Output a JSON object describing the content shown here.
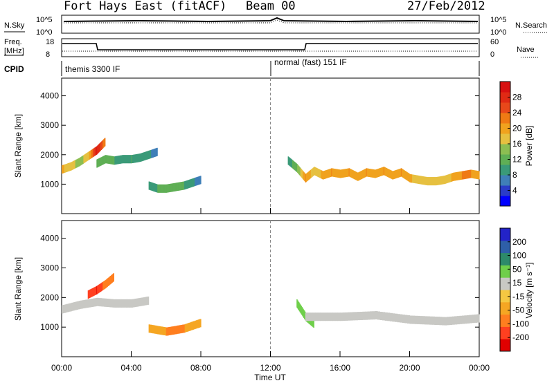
{
  "header": {
    "station": "Fort Hays East (fitACF)",
    "beam": "Beam 00",
    "date": "27/Feb/2012"
  },
  "strip_labels": {
    "nsky": "N.Sky",
    "nsky_hi": "10^5",
    "nsky_lo": "10^0",
    "nsearch": "N.Search",
    "nsearch_hi": "10^5",
    "nsearch_lo": "10^0",
    "freq_a": "Freq.",
    "freq_b": "[MHz]",
    "freq_hi": "18",
    "freq_lo": "8",
    "nave": "Nave",
    "nave_hi": "60",
    "nave_lo": "0",
    "cpid": "CPID",
    "cpid_1": "themis 3300 IF",
    "cpid_2": "normal (fast) 151 IF"
  },
  "power_panel": {
    "ylabel": "Slant Range [km]",
    "cbar_label": "Power [dB]",
    "cbar_ticks": [
      "28",
      "24",
      "20",
      "16",
      "12",
      "8",
      "4"
    ],
    "cbar_colors": [
      "#0000ff",
      "#2a3cc8",
      "#3f7fb8",
      "#3a9a78",
      "#5faf55",
      "#8cbe52",
      "#e6c040",
      "#f0a21e",
      "#ef7a14",
      "#e8481a",
      "#e02a14",
      "#d81010"
    ]
  },
  "velocity_panel": {
    "ylabel": "Slant Range [km]",
    "cbar_label": "Velocity [m s⁻¹]",
    "cbar_ticks": [
      "200",
      "100",
      "50",
      "15",
      "-15",
      "-50",
      "-100",
      "-200"
    ],
    "cbar_colors": [
      "#e00000",
      "#ff4020",
      "#ff7e1f",
      "#f5a623",
      "#f5c842",
      "#c8c8c4",
      "#6fcf4a",
      "#2d8a6a",
      "#2e5fa8",
      "#2323c8"
    ]
  },
  "xaxis": {
    "label": "Time UT",
    "ticks": [
      "00:00",
      "04:00",
      "08:00",
      "12:00",
      "16:00",
      "20:00",
      "00:00"
    ]
  },
  "chart_data": {
    "type": "heatmap",
    "title": "Fort Hays East (fitACF)",
    "subtitle": "Beam 00 — 27/Feb/2012",
    "xlabel": "Time UT",
    "ylabel": "Slant Range [km]",
    "xlim_hours": [
      0,
      24
    ],
    "ylim_km": [
      0,
      4600
    ],
    "yticks_km": [
      1000,
      2000,
      3000,
      4000
    ],
    "mode_change_hour": 12,
    "cpid_segments": [
      {
        "start_hour": 0,
        "end_hour": 12,
        "label": "themis 3300 IF"
      },
      {
        "start_hour": 12,
        "end_hour": 24,
        "label": "normal (fast) 151 IF"
      }
    ],
    "frequency_MHz": [
      {
        "start_hour": 0,
        "end_hour": 2,
        "value": 17.5
      },
      {
        "start_hour": 2,
        "end_hour": 14,
        "value": 10.5
      },
      {
        "start_hour": 14,
        "end_hour": 24,
        "value": 17.5
      }
    ],
    "power_tracks": [
      {
        "name": "t1",
        "hours": [
          0,
          0.5,
          1,
          1.5,
          2,
          2.5
        ],
        "range_km": [
          1500,
          1600,
          1750,
          1950,
          2150,
          2450
        ],
        "power_dB": [
          18,
          16,
          14,
          16,
          28,
          20
        ]
      },
      {
        "name": "t2",
        "hours": [
          2,
          2.5,
          3,
          3.5,
          4,
          4.5,
          5,
          5.5
        ],
        "range_km": [
          1700,
          1850,
          1800,
          1850,
          1850,
          1900,
          2000,
          2100
        ],
        "power_dB": [
          12,
          10,
          10,
          8,
          10,
          8,
          8,
          6
        ]
      },
      {
        "name": "t3",
        "hours": [
          5,
          5.5,
          6,
          6.5,
          7,
          7.5,
          8
        ],
        "range_km": [
          950,
          850,
          850,
          900,
          950,
          1050,
          1150
        ],
        "power_dB": [
          8,
          10,
          12,
          12,
          10,
          8,
          6
        ]
      },
      {
        "name": "t4",
        "hours": [
          13,
          13.5,
          14,
          14.5,
          15,
          15.5,
          16,
          16.5,
          17,
          17.5,
          18,
          18.5,
          19,
          19.5,
          20,
          20.5,
          21,
          21.5,
          22,
          22.5,
          23,
          23.5,
          24
        ],
        "range_km": [
          1800,
          1550,
          1200,
          1450,
          1300,
          1400,
          1350,
          1400,
          1250,
          1400,
          1350,
          1450,
          1300,
          1400,
          1200,
          1150,
          1100,
          1100,
          1150,
          1250,
          1300,
          1350,
          1300
        ],
        "power_dB": [
          8,
          12,
          20,
          16,
          18,
          20,
          18,
          20,
          18,
          20,
          18,
          20,
          18,
          20,
          18,
          16,
          16,
          16,
          16,
          18,
          20,
          20,
          18
        ]
      }
    ],
    "velocity_tracks": [
      {
        "name": "v1",
        "hours": [
          0,
          1,
          2,
          3,
          4,
          5
        ],
        "range_km": [
          1600,
          1750,
          1850,
          1800,
          1800,
          1900
        ],
        "velocity_ms": [
          0,
          0,
          0,
          0,
          0,
          0
        ]
      },
      {
        "name": "v2",
        "hours": [
          1.5,
          2,
          2.5,
          3
        ],
        "range_km": [
          2100,
          2250,
          2450,
          2700
        ],
        "velocity_ms": [
          -150,
          -200,
          -50,
          -100
        ]
      },
      {
        "name": "v3",
        "hours": [
          5,
          6,
          7,
          8
        ],
        "range_km": [
          950,
          850,
          950,
          1150
        ],
        "velocity_ms": [
          -40,
          -50,
          -50,
          -40
        ]
      },
      {
        "name": "v4",
        "hours": [
          13.5,
          14,
          14.5
        ],
        "range_km": [
          1800,
          1350,
          1100
        ],
        "velocity_ms": [
          30,
          40,
          30
        ]
      },
      {
        "name": "v5",
        "hours": [
          14,
          16,
          18,
          20,
          22,
          24
        ],
        "range_km": [
          1350,
          1350,
          1400,
          1250,
          1200,
          1300
        ],
        "velocity_ms": [
          0,
          0,
          0,
          0,
          0,
          0
        ]
      }
    ]
  }
}
